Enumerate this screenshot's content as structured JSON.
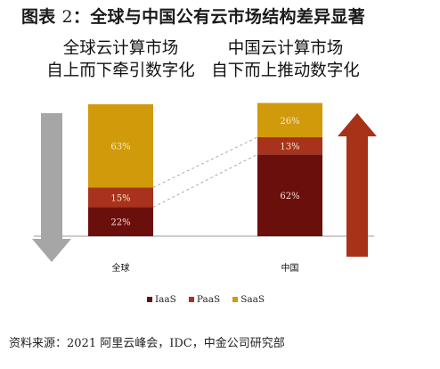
{
  "title_prefix": "图表",
  "title_num": "2",
  "title_main": "：全球与中国公有云市场结构差异显著",
  "subtitle_left": [
    "全球云计算市场",
    "自上而下牵引数字化"
  ],
  "subtitle_right": [
    "中国云计算市场",
    "自下而上推动数字化"
  ],
  "colors": {
    "IaaS": "#6b0f0c",
    "PaaS": "#a8321b",
    "SaaS": "#d09a0a",
    "down_arrow": "#a6a6a6",
    "up_arrow": "#a83218"
  },
  "chart_data": {
    "type": "bar",
    "stacked": true,
    "categories": [
      "全球",
      "中国"
    ],
    "series": [
      {
        "name": "IaaS",
        "values": [
          22,
          62
        ]
      },
      {
        "name": "PaaS",
        "values": [
          15,
          13
        ]
      },
      {
        "name": "SaaS",
        "values": [
          63,
          26
        ]
      }
    ],
    "value_suffix": "%",
    "ylim": [
      0,
      100
    ],
    "legend_position": "bottom"
  },
  "source_prefix": "资料来源：",
  "source_year": "2021",
  "source_mid1": " 阿里云峰会，",
  "source_idc": "IDC",
  "source_mid2": "，中金公司研究部"
}
